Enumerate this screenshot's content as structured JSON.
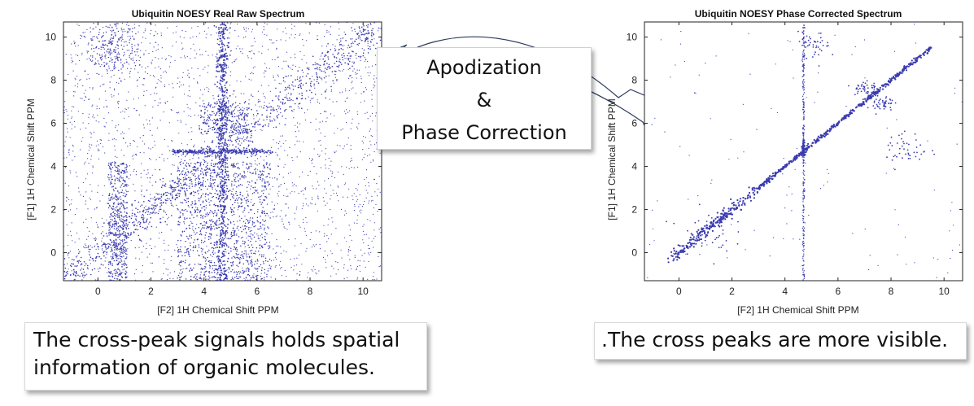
{
  "charts": [
    {
      "panel": "raw",
      "type": "scatter",
      "title": "Ubiquitin NOESY Real Raw Spectrum",
      "xlabel": "[F2] 1H Chemical Shift PPM",
      "ylabel": "[F1] 1H Chemical Shift PPM",
      "xlim": [
        -1.3,
        10.7
      ],
      "ylim": [
        -1.3,
        10.7
      ],
      "xticks": [
        0,
        2,
        4,
        6,
        8,
        10
      ],
      "yticks": [
        0,
        2,
        4,
        6,
        8,
        10
      ],
      "point_color": "#3b3bb0",
      "features": {
        "noise_density": "high",
        "diagonal": [
          -1.3,
          10.7
        ],
        "solvent_stripe_f2": 4.7,
        "horizontal_stripe_f1": 4.7,
        "dense_columns_f2": [
          [
            0.4,
            1.1
          ],
          [
            3.0,
            4.5
          ],
          [
            5.0,
            6.5
          ]
        ],
        "dense_rows_f1": [
          [
            5.5,
            7.0
          ]
        ]
      }
    },
    {
      "panel": "corrected",
      "type": "scatter",
      "title": "Ubiquitin NOESY Phase Corrected Spectrum",
      "xlabel": "[F2] 1H Chemical Shift PPM",
      "ylabel": "[F1] 1H Chemical Shift PPM",
      "xlim": [
        -1.3,
        10.7
      ],
      "ylim": [
        -1.3,
        10.7
      ],
      "xticks": [
        0,
        2,
        4,
        6,
        8,
        10
      ],
      "yticks": [
        0,
        2,
        4,
        6,
        8,
        10
      ],
      "point_color": "#3b3bb0",
      "features": {
        "noise_density": "low",
        "diagonal": [
          -0.3,
          9.6
        ],
        "solvent_stripe_f2": 4.7,
        "cross_peak_clusters": [
          {
            "x": 1.0,
            "y": 1.0,
            "spread": 0.5
          },
          {
            "x": 7.0,
            "y": 7.6,
            "spread": 0.25
          },
          {
            "x": 8.6,
            "y": 4.8,
            "spread": 0.4
          },
          {
            "x": 5.1,
            "y": 9.6,
            "spread": 0.3
          },
          {
            "x": 7.7,
            "y": 6.9,
            "spread": 0.2
          }
        ]
      }
    }
  ],
  "arrow_label": {
    "line1": "Apodization",
    "line2": "&",
    "line3": "Phase Correction"
  },
  "captions": {
    "left_line1": "The cross-peak signals holds spatial",
    "left_line2": "information of organic molecules.",
    "right": ".The cross peaks are more visible."
  },
  "colors": {
    "points": "#3b3bb0",
    "arrow_fill": "#c9c9c9",
    "arrow_stroke": "#2a3b5c"
  }
}
